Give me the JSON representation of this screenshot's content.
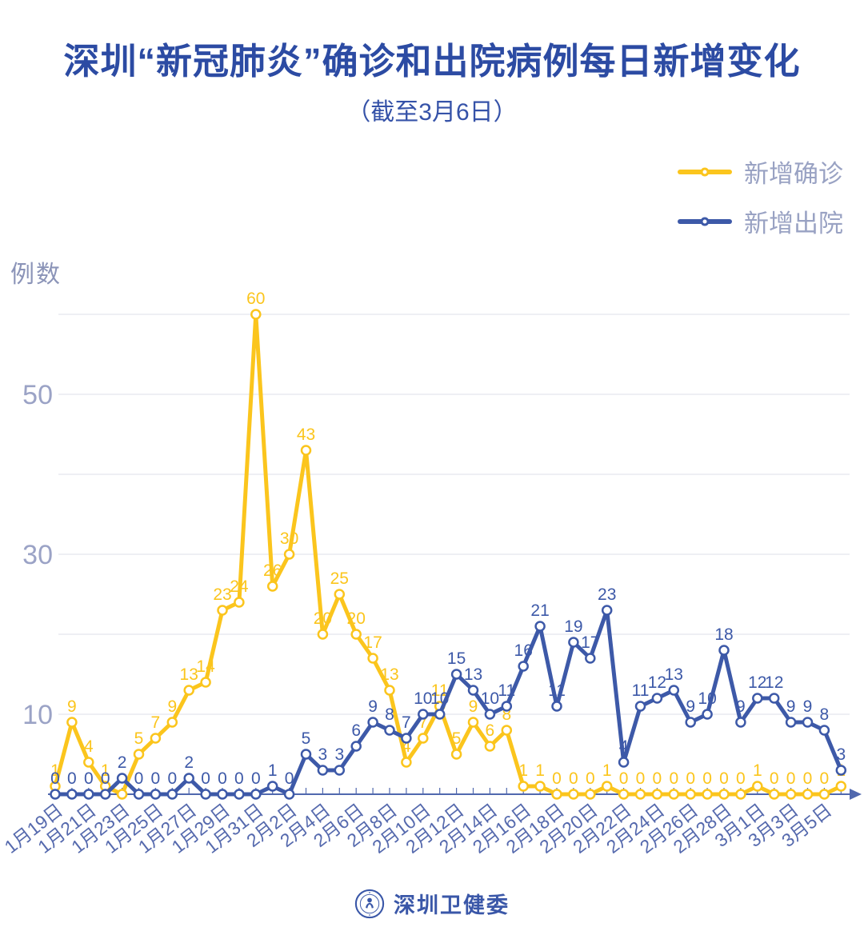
{
  "header": {
    "title": "深圳“新冠肺炎”确诊和出院病例每日新增变化",
    "subtitle": "（截至3月6日）"
  },
  "legend": {
    "items": [
      {
        "label": "新增确诊",
        "color": "#fbc51d"
      },
      {
        "label": "新增出院",
        "color": "#3d59a8"
      }
    ]
  },
  "footer": {
    "brand": "深圳卫健委",
    "logo": "shenzhen-health-commission-seal"
  },
  "colors": {
    "title": "#2c4ba3",
    "axis": "#5068ae",
    "x_label": "#5569ad",
    "y_label": "#9ba3c6",
    "gridline": "#e4e5ed",
    "confirmed": "#fbc51d",
    "discharged": "#3d59a8"
  },
  "chart_data": {
    "type": "line",
    "title": "深圳“新冠肺炎”确诊和出院病例每日新增变化",
    "subtitle": "（截至3月6日）",
    "xlabel": "",
    "ylabel": "例数",
    "ylim": [
      0,
      60
    ],
    "grid": true,
    "grid_values": [
      10,
      20,
      30,
      40,
      50,
      60
    ],
    "ytick_labeled": [
      10,
      30,
      50
    ],
    "legend_position": "top-right",
    "x_labels_every": 2,
    "marker": "open-circle",
    "point_labels_shown": true,
    "categories": [
      "1月19日",
      "1月20日",
      "1月21日",
      "1月22日",
      "1月23日",
      "1月24日",
      "1月25日",
      "1月26日",
      "1月27日",
      "1月28日",
      "1月29日",
      "1月30日",
      "1月31日",
      "2月1日",
      "2月2日",
      "2月3日",
      "2月4日",
      "2月5日",
      "2月6日",
      "2月7日",
      "2月8日",
      "2月9日",
      "2月10日",
      "2月11日",
      "2月12日",
      "2月13日",
      "2月14日",
      "2月15日",
      "2月16日",
      "2月17日",
      "2月18日",
      "2月19日",
      "2月20日",
      "2月21日",
      "2月22日",
      "2月23日",
      "2月24日",
      "2月25日",
      "2月26日",
      "2月27日",
      "2月28日",
      "2月29日",
      "3月1日",
      "3月2日",
      "3月3日",
      "3月4日",
      "3月5日",
      "3月6日"
    ],
    "series": [
      {
        "name": "新增确诊",
        "color": "#fbc51d",
        "values": [
          1,
          9,
          4,
          1,
          0,
          5,
          7,
          9,
          13,
          14,
          23,
          24,
          60,
          26,
          30,
          43,
          20,
          25,
          20,
          17,
          13,
          4,
          7,
          11,
          5,
          9,
          6,
          8,
          1,
          1,
          0,
          0,
          0,
          1,
          0,
          0,
          0,
          0,
          0,
          0,
          0,
          0,
          1,
          0,
          0,
          0,
          0,
          1
        ],
        "label_hidden_indices": [
          4
        ]
      },
      {
        "name": "新增出院",
        "color": "#3d59a8",
        "values": [
          0,
          0,
          0,
          0,
          2,
          0,
          0,
          0,
          2,
          0,
          0,
          0,
          0,
          1,
          0,
          5,
          3,
          3,
          6,
          9,
          8,
          7,
          10,
          10,
          15,
          13,
          10,
          11,
          16,
          21,
          11,
          19,
          17,
          23,
          4,
          11,
          12,
          13,
          9,
          10,
          18,
          9,
          12,
          12,
          9,
          9,
          8,
          3
        ],
        "label_hidden_indices": []
      }
    ]
  }
}
